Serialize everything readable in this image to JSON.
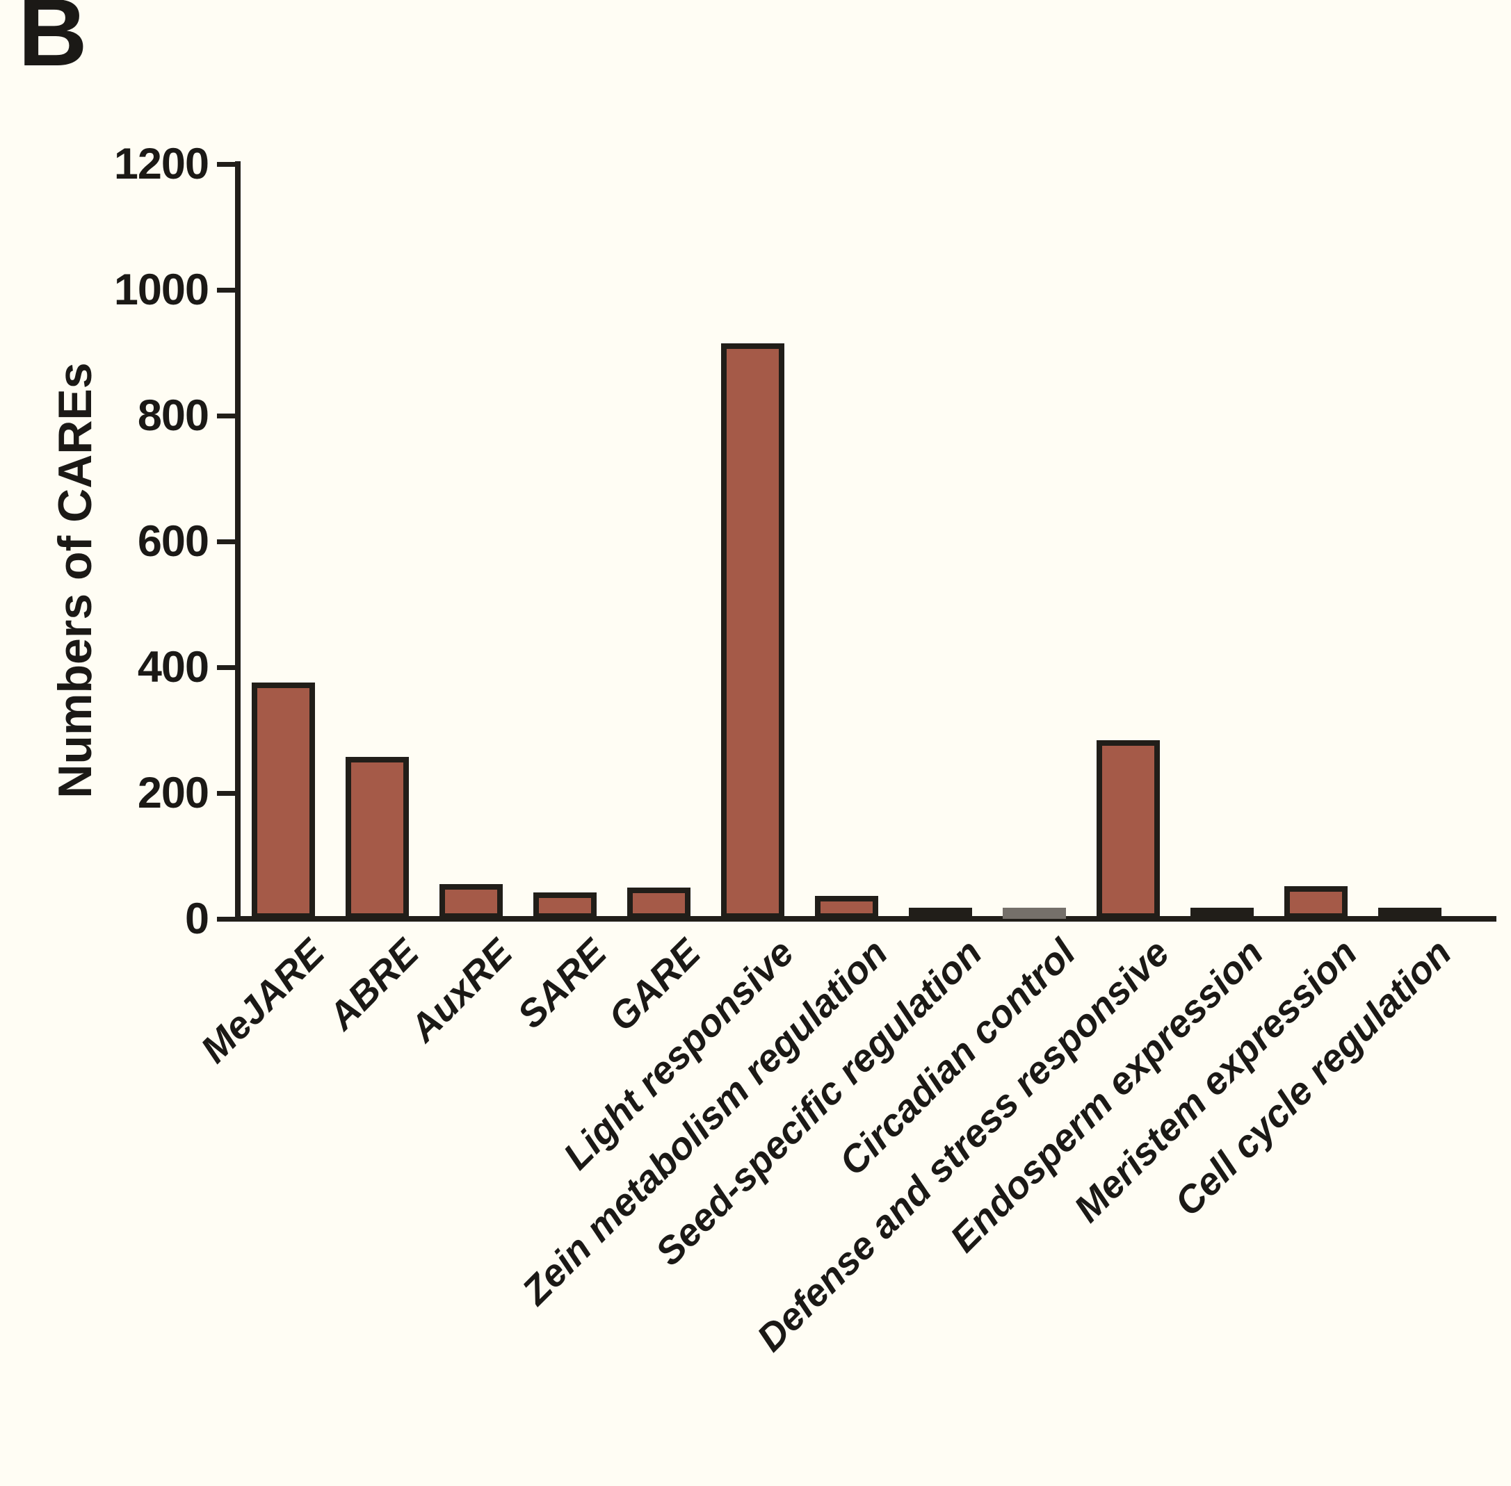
{
  "panel_label": "B",
  "colors": {
    "background": "#FFFDF4",
    "text": "#1B1916",
    "axis": "#211E19",
    "bar_fill": "#A55A48",
    "bar_border": "#211E19",
    "circadian_bar_border": "#75706A"
  },
  "chart_data": {
    "type": "bar",
    "title": "",
    "xlabel": "",
    "ylabel": "Numbers of CAREs",
    "ylim": [
      0,
      1200
    ],
    "yticks": [
      0,
      200,
      400,
      600,
      800,
      1000,
      1200
    ],
    "grid": false,
    "legend": "none",
    "categories": [
      "MeJARE",
      "ABRE",
      "AuxRE",
      "SARE",
      "GARE",
      "Light responsive",
      "Zein metabolism regulation",
      "Seed-specific regulation",
      "Circadian control",
      "Defense and stress responsive",
      "Endosperm expression",
      "Meristem expression",
      "Cell cycle regulation"
    ],
    "values": [
      376,
      258,
      55,
      42,
      50,
      915,
      37,
      16,
      14,
      284,
      14,
      52,
      14
    ],
    "bar_border_override_index": 8
  }
}
